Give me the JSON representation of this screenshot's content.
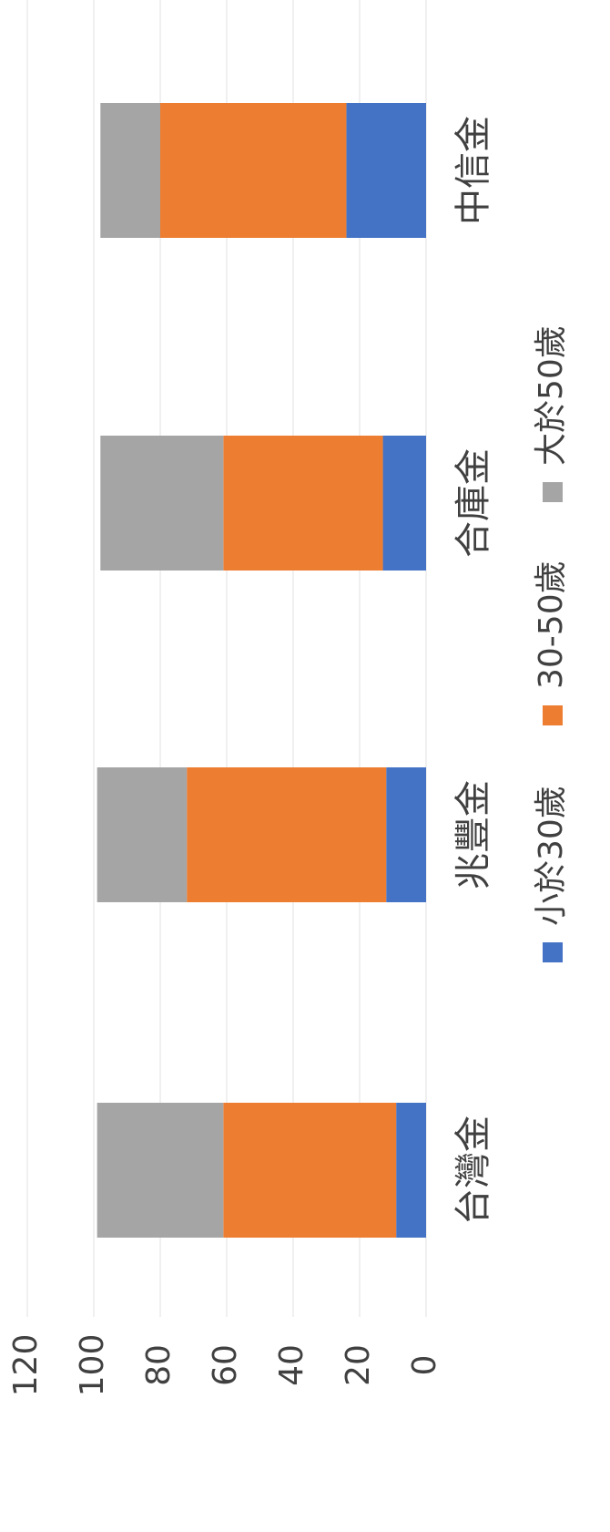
{
  "chart_data": {
    "type": "bar",
    "orientation": "horizontal",
    "stacked": true,
    "categories": [
      "台灣金",
      "兆豐金",
      "合庫金",
      "中信金"
    ],
    "series": [
      {
        "name": "小於30歲",
        "values": [
          9,
          12,
          13,
          24
        ],
        "color": "#4472C4"
      },
      {
        "name": "30-50歲",
        "values": [
          52,
          60,
          48,
          56
        ],
        "color": "#ED7D31"
      },
      {
        "name": "大於50歲",
        "values": [
          38,
          27,
          37,
          18
        ],
        "color": "#A5A5A5"
      }
    ],
    "xlim": [
      0,
      120
    ],
    "ticks": [
      "0",
      "20",
      "40",
      "60",
      "80",
      "100",
      "120"
    ],
    "grid": true,
    "legend_position": "bottom"
  }
}
